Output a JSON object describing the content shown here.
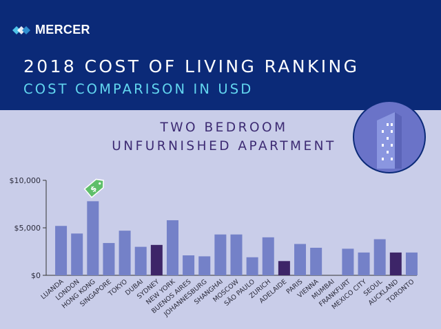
{
  "header": {
    "brand": "MERCER",
    "title": "2018 COST OF LIVING RANKING",
    "subtitle": "COST COMPARISON IN USD"
  },
  "colors": {
    "header_bg": "#0b2a78",
    "page_bg": "#c9cde9",
    "bar_default": "#7481c8",
    "bar_highlight": "#3d2568",
    "subtitle": "#62d6ef",
    "tag": "#5fbf6a"
  },
  "icons": [
    "mercer-logo-icon",
    "price-tag-icon",
    "building-icon"
  ],
  "chart_data": {
    "type": "bar",
    "title_lines": [
      "TWO BEDROOM",
      "UNFURNISHED APARTMENT"
    ],
    "categories": [
      "LUANDA",
      "LONDON",
      "HONG KONG",
      "SINGAPORE",
      "TOKYO",
      "DUBAI",
      "SYDNEY",
      "NEW YORK",
      "BUENOS AIRES",
      "JOHANNESBURG",
      "SHANGHAI",
      "MOSCOW",
      "SÃO PAULO",
      "ZURICH",
      "ADELAIDE",
      "PARIS",
      "VIENNA",
      "MUMBAI",
      "FRANKFURT",
      "MEXICO CITY",
      "SEOUL",
      "AUCKLAND",
      "TORONTO"
    ],
    "values": [
      5200,
      4400,
      7800,
      3400,
      4700,
      3000,
      3200,
      5800,
      2100,
      2000,
      4300,
      4300,
      1900,
      4000,
      1500,
      3300,
      2900,
      0,
      2800,
      2400,
      3800,
      2400,
      2400
    ],
    "highlighted": [
      "SYDNEY",
      "ADELAIDE",
      "AUCKLAND"
    ],
    "ylim": [
      0,
      10000
    ],
    "yticks": [
      0,
      5000,
      10000
    ],
    "ytick_labels": [
      "$0",
      "$5,000",
      "$10,000"
    ],
    "grid": false,
    "xlabel": "",
    "ylabel": ""
  }
}
